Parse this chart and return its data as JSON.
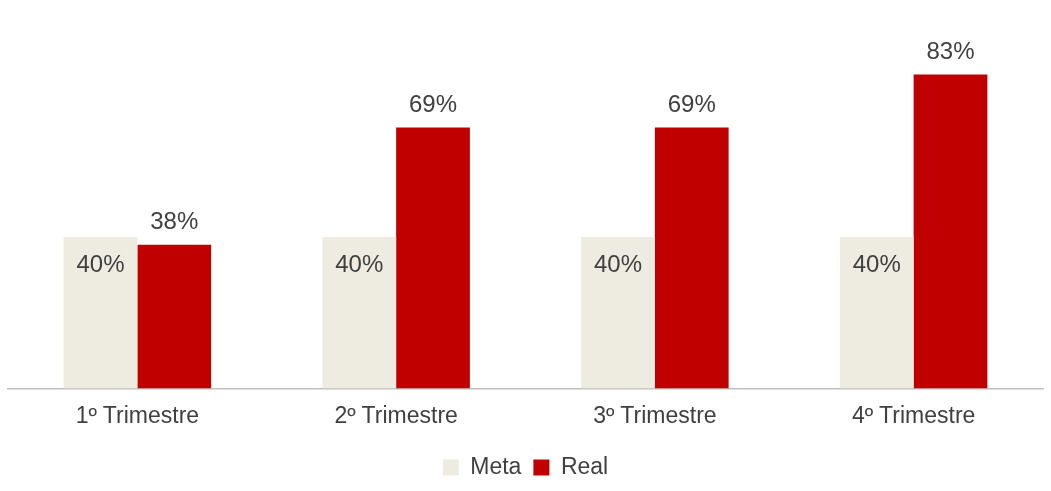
{
  "chart_data": {
    "type": "bar",
    "categories": [
      "1º Trimestre",
      "2º Trimestre",
      "3º Trimestre",
      "4º Trimestre"
    ],
    "series": [
      {
        "name": "Meta",
        "color": "#eeebe0",
        "values": [
          40,
          40,
          40,
          40
        ],
        "value_labels": [
          "40%",
          "40%",
          "40%",
          "40%"
        ]
      },
      {
        "name": "Real",
        "color": "#c00000",
        "values": [
          38,
          69,
          69,
          83
        ],
        "value_labels": [
          "38%",
          "69%",
          "69%",
          "83%"
        ]
      }
    ],
    "tick_labels": "x",
    "grid": false,
    "legend": "bottom"
  }
}
